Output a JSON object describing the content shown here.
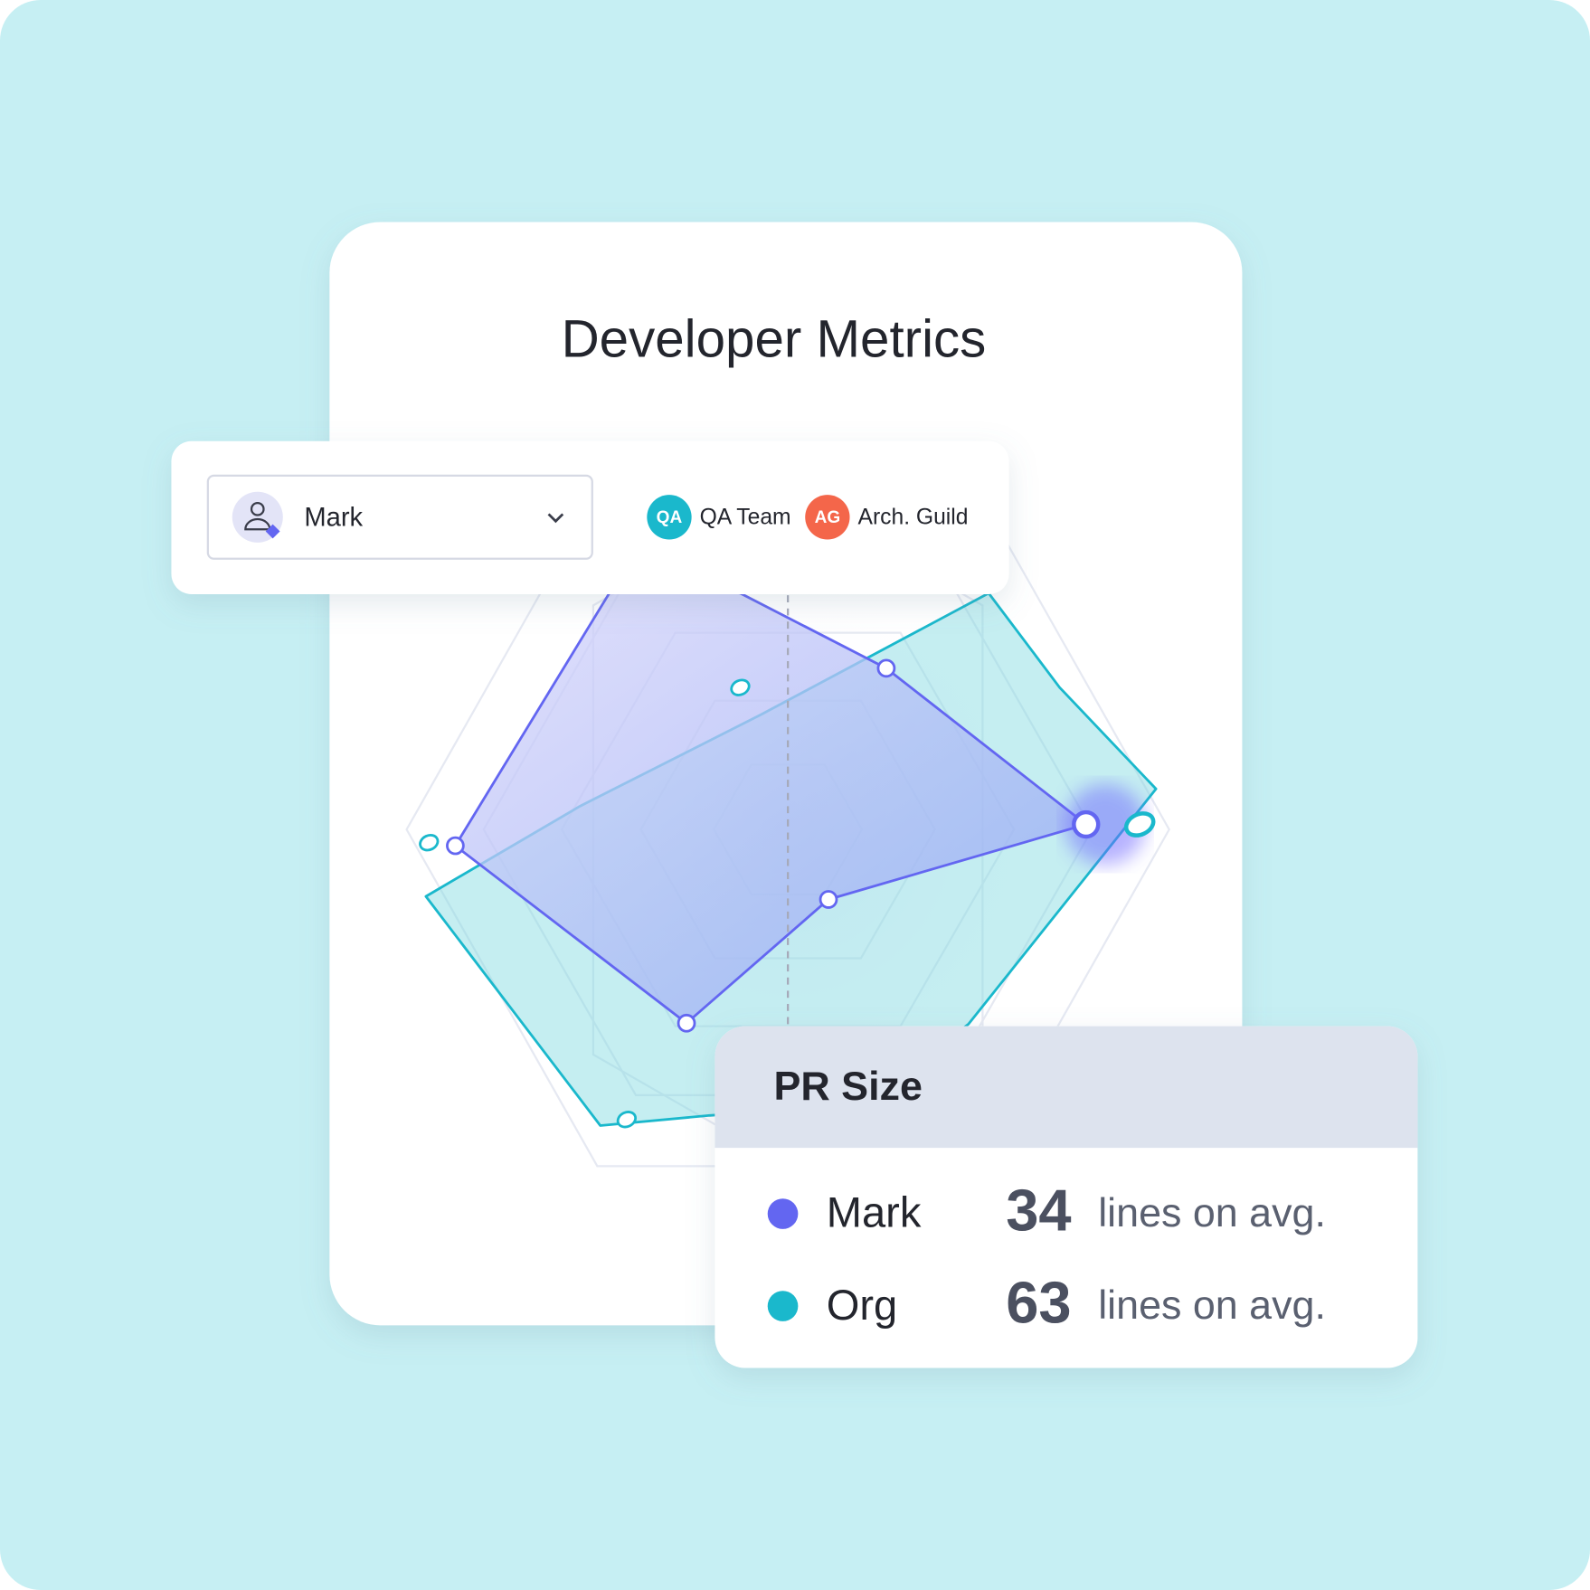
{
  "card": {
    "title": "Developer Metrics"
  },
  "selector": {
    "user": "Mark"
  },
  "teams": [
    {
      "initials": "QA",
      "name": "QA Team",
      "color": "#1ab8cc"
    },
    {
      "initials": "AG",
      "name": "Arch. Guild",
      "color": "#f4664a"
    }
  ],
  "tooltip": {
    "title": "PR Size",
    "rows": [
      {
        "name": "Mark",
        "value": 34,
        "unit": "lines on avg.",
        "color": "#6366f1"
      },
      {
        "name": "Org",
        "value": 63,
        "unit": "lines on avg.",
        "color": "#1ab8cc"
      }
    ]
  }
}
